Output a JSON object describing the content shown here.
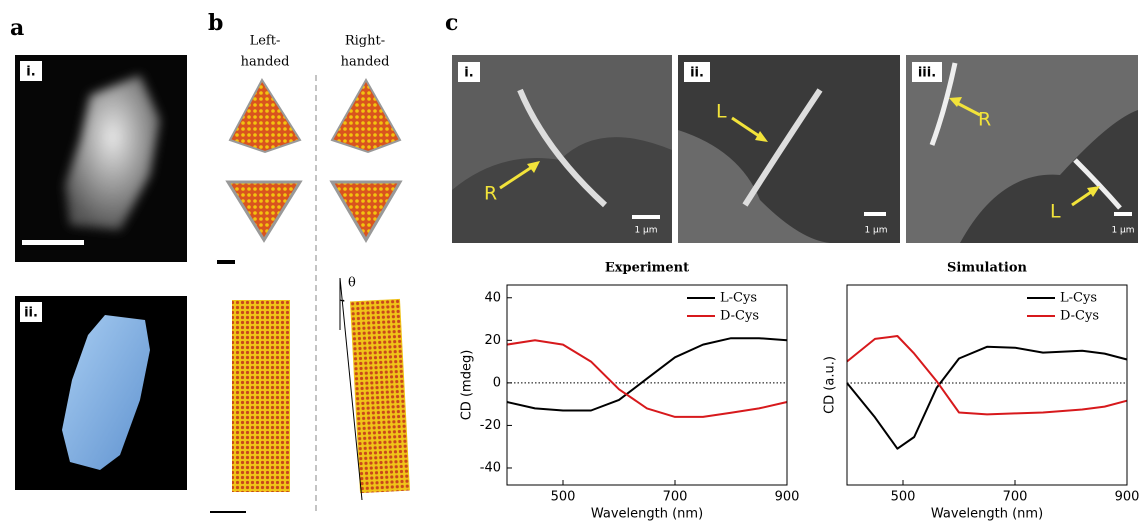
{
  "panels": {
    "a": {
      "label": "a",
      "images": [
        {
          "label": "i."
        },
        {
          "label": "ii."
        }
      ]
    },
    "b": {
      "label": "b",
      "columns": [
        [
          "Left-",
          "handed"
        ],
        [
          "Right-",
          "handed"
        ]
      ],
      "angle": "θ"
    },
    "c": {
      "label": "c",
      "images": [
        {
          "label": "i.",
          "annotations": [
            "R"
          ],
          "scale": "1 μm"
        },
        {
          "label": "ii.",
          "annotations": [
            "L"
          ],
          "scale": "1 μm"
        },
        {
          "label": "iii.",
          "annotations": [
            "R",
            "L"
          ],
          "scale": "1 μm"
        }
      ]
    }
  },
  "chart_data": [
    {
      "type": "line",
      "title": "Experiment",
      "xlabel": "Wavelength (nm)",
      "ylabel": "CD (mdeg)",
      "x": [
        400,
        450,
        500,
        550,
        600,
        650,
        700,
        750,
        800,
        850,
        900
      ],
      "series": [
        {
          "name": "L-Cys",
          "color": "#000000",
          "values": [
            -9,
            -12,
            -13,
            -13,
            -8,
            2,
            12,
            18,
            21,
            21,
            20
          ]
        },
        {
          "name": "D-Cys",
          "color": "#d7191c",
          "values": [
            18,
            20,
            18,
            10,
            -3,
            -12,
            -16,
            -16,
            -14,
            -12,
            -9
          ]
        }
      ],
      "xlim": [
        400,
        900
      ],
      "xticks": [
        500,
        700,
        900
      ],
      "ylim": [
        -48,
        46
      ],
      "yticks": [
        -40,
        -20,
        0,
        20,
        40
      ],
      "hlines": [
        0
      ],
      "legend": "upper right"
    },
    {
      "type": "line",
      "title": "Simulation",
      "xlabel": "Wavelength (nm)",
      "ylabel": "CD (a.u.)",
      "x": [
        400,
        450,
        490,
        520,
        560,
        600,
        650,
        700,
        750,
        820,
        860,
        900
      ],
      "series": [
        {
          "name": "L-Cys",
          "color": "#000000",
          "values": [
            0,
            -0.35,
            -0.67,
            -0.55,
            -0.05,
            0.25,
            0.37,
            0.36,
            0.31,
            0.33,
            0.3,
            0.24
          ]
        },
        {
          "name": "D-Cys",
          "color": "#d7191c",
          "values": [
            0.22,
            0.45,
            0.48,
            0.3,
            0.02,
            -0.3,
            -0.32,
            -0.31,
            -0.3,
            -0.27,
            -0.24,
            -0.18
          ]
        }
      ],
      "xlim": [
        400,
        900
      ],
      "xticks": [
        500,
        700,
        900
      ],
      "ylim": [
        -1.04,
        1
      ],
      "yticks": [],
      "hlines": [
        0
      ],
      "legend": "upper right"
    }
  ]
}
